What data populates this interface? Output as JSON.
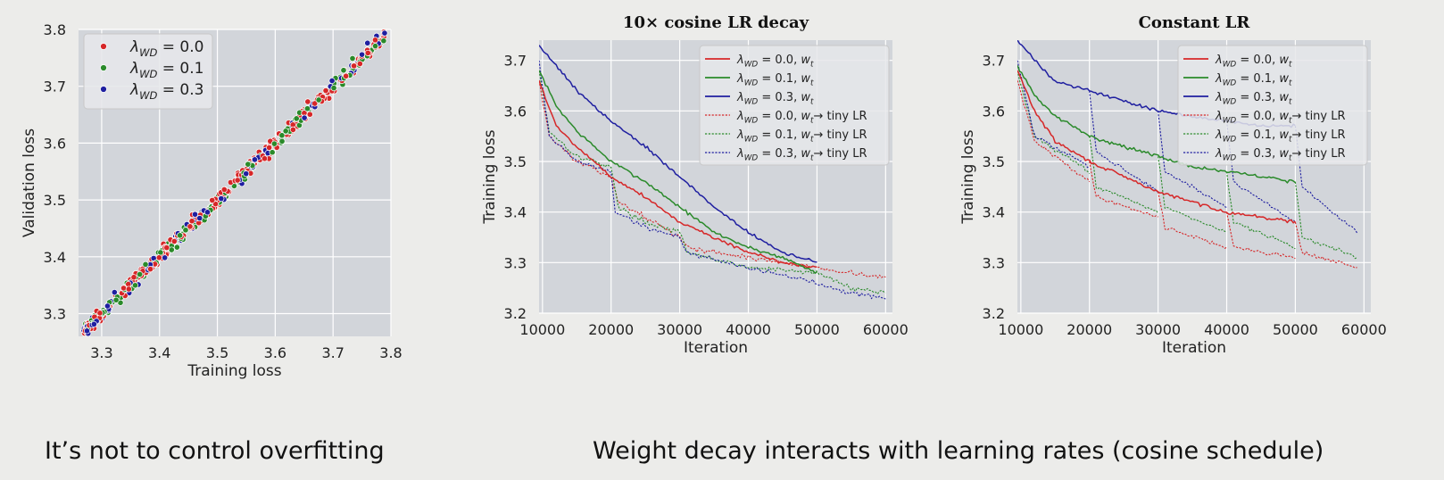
{
  "captions": {
    "left": "It’s not  to control overfitting",
    "right": "Weight decay interacts with learning rates (cosine schedule)"
  },
  "colors": {
    "red": "#d62728",
    "green": "#2a8a2a",
    "blue": "#1f1fa0",
    "plot_bg": "#d2d5da",
    "grid": "#ffffff"
  },
  "chart_data": [
    {
      "id": "scatter",
      "type": "scatter",
      "title": "",
      "xlabel": "Training loss",
      "ylabel": "Validation loss",
      "xlim": [
        3.26,
        3.8
      ],
      "ylim": [
        3.26,
        3.8
      ],
      "xticks": [
        3.3,
        3.4,
        3.5,
        3.6,
        3.7,
        3.8
      ],
      "yticks": [
        3.3,
        3.4,
        3.5,
        3.6,
        3.7,
        3.8
      ],
      "tick_labels_x": [
        "3.3",
        "3.4",
        "3.5",
        "3.6",
        "3.7",
        "3.8"
      ],
      "tick_labels_y": [
        "3.3",
        "3.4",
        "3.5",
        "3.6",
        "3.7",
        "3.8"
      ],
      "legend_position": "top-left",
      "series": [
        {
          "name": "λWD = 0.0",
          "sym": "λ",
          "sub": "WD",
          "rest": " = 0.0",
          "color": "#d62728",
          "count": 240,
          "seed": 11
        },
        {
          "name": "λWD = 0.1",
          "sym": "λ",
          "sub": "WD",
          "rest": " = 0.1",
          "color": "#2a8a2a",
          "count": 160,
          "seed": 23
        },
        {
          "name": "λWD = 0.3",
          "sym": "λ",
          "sub": "WD",
          "rest": " = 0.3",
          "color": "#1f1fa0",
          "count": 100,
          "seed": 37
        }
      ],
      "relation": {
        "slope": 1.0,
        "intercept": 0.0,
        "spread": 0.012
      }
    },
    {
      "id": "cosine",
      "type": "line",
      "title": "10× cosine LR decay",
      "xlabel": "Iteration",
      "ylabel": "Training loss",
      "xlim": [
        9500,
        61000
      ],
      "ylim": [
        3.2,
        3.74
      ],
      "xticks": [
        10000,
        20000,
        30000,
        40000,
        50000,
        60000
      ],
      "yticks": [
        3.2,
        3.3,
        3.4,
        3.5,
        3.6,
        3.7
      ],
      "tick_labels_x": [
        "10000",
        "20000",
        "30000",
        "40000",
        "50000",
        "60000"
      ],
      "tick_labels_y": [
        "3.2",
        "3.3",
        "3.4",
        "3.5",
        "3.6",
        "3.7"
      ],
      "legend_position": "top-right",
      "series": [
        {
          "name": "λWD = 0.0, wt",
          "sym": "λ",
          "sub": "WD",
          "rest": " = 0.0, ",
          "w": "w",
          "wsub": "t",
          "tail": "",
          "color": "#d62728",
          "style": "solid",
          "seed": 5,
          "points": [
            [
              9500,
              3.66
            ],
            [
              12000,
              3.57
            ],
            [
              15000,
              3.53
            ],
            [
              20000,
              3.47
            ],
            [
              25000,
              3.43
            ],
            [
              30000,
              3.38
            ],
            [
              35000,
              3.35
            ],
            [
              40000,
              3.32
            ],
            [
              45000,
              3.3
            ],
            [
              50000,
              3.29
            ]
          ]
        },
        {
          "name": "λWD = 0.1, wt",
          "sym": "λ",
          "sub": "WD",
          "rest": " = 0.1, ",
          "w": "w",
          "wsub": "t",
          "tail": "",
          "color": "#2a8a2a",
          "style": "solid",
          "seed": 7,
          "points": [
            [
              9500,
              3.68
            ],
            [
              12000,
              3.61
            ],
            [
              15000,
              3.56
            ],
            [
              20000,
              3.5
            ],
            [
              25000,
              3.46
            ],
            [
              30000,
              3.41
            ],
            [
              35000,
              3.36
            ],
            [
              40000,
              3.33
            ],
            [
              45000,
              3.31
            ],
            [
              50000,
              3.28
            ]
          ]
        },
        {
          "name": "λWD = 0.3, wt",
          "sym": "λ",
          "sub": "WD",
          "rest": " = 0.3, ",
          "w": "w",
          "wsub": "t",
          "tail": "",
          "color": "#1f1fa0",
          "style": "solid",
          "seed": 9,
          "points": [
            [
              9500,
              3.73
            ],
            [
              12000,
              3.69
            ],
            [
              15000,
              3.64
            ],
            [
              20000,
              3.58
            ],
            [
              25000,
              3.53
            ],
            [
              30000,
              3.47
            ],
            [
              35000,
              3.41
            ],
            [
              40000,
              3.36
            ],
            [
              45000,
              3.32
            ],
            [
              50000,
              3.3
            ]
          ]
        },
        {
          "name": "λWD = 0.0, wt → tiny LR",
          "sym": "λ",
          "sub": "WD",
          "rest": " = 0.0, ",
          "w": "w",
          "wsub": "t",
          "tail": "→ tiny LR",
          "color": "#d62728",
          "style": "dotted",
          "seed": 13,
          "points": [
            [
              9500,
              3.66
            ],
            [
              11000,
              3.55
            ],
            [
              15000,
              3.5
            ],
            [
              20000,
              3.47
            ],
            [
              21000,
              3.42
            ],
            [
              25000,
              3.39
            ],
            [
              30000,
              3.35
            ],
            [
              31000,
              3.33
            ],
            [
              40000,
              3.31
            ],
            [
              50000,
              3.29
            ],
            [
              55000,
              3.28
            ],
            [
              60000,
              3.27
            ]
          ]
        },
        {
          "name": "λWD = 0.1, wt → tiny LR",
          "sym": "λ",
          "sub": "WD",
          "rest": " = 0.1, ",
          "w": "w",
          "wsub": "t",
          "tail": "→ tiny LR",
          "color": "#2a8a2a",
          "style": "dotted",
          "seed": 17,
          "points": [
            [
              9500,
              3.68
            ],
            [
              11000,
              3.56
            ],
            [
              15000,
              3.51
            ],
            [
              20000,
              3.49
            ],
            [
              21000,
              3.41
            ],
            [
              25000,
              3.38
            ],
            [
              30000,
              3.36
            ],
            [
              31000,
              3.32
            ],
            [
              40000,
              3.29
            ],
            [
              50000,
              3.28
            ],
            [
              55000,
              3.25
            ],
            [
              60000,
              3.24
            ]
          ]
        },
        {
          "name": "λWD = 0.3, wt → tiny LR",
          "sym": "λ",
          "sub": "WD",
          "rest": " = 0.3, ",
          "w": "w",
          "wsub": "t",
          "tail": "→ tiny LR",
          "color": "#1f1fa0",
          "style": "dotted",
          "seed": 19,
          "points": [
            [
              9500,
              3.7
            ],
            [
              11000,
              3.55
            ],
            [
              15000,
              3.5
            ],
            [
              20000,
              3.48
            ],
            [
              20600,
              3.4
            ],
            [
              25000,
              3.37
            ],
            [
              30000,
              3.35
            ],
            [
              31000,
              3.32
            ],
            [
              40000,
              3.29
            ],
            [
              50000,
              3.26
            ],
            [
              55000,
              3.24
            ],
            [
              60000,
              3.23
            ]
          ]
        }
      ]
    },
    {
      "id": "constant",
      "type": "line",
      "title": "Constant LR",
      "xlabel": "Iteration",
      "ylabel": "Training loss",
      "xlim": [
        9500,
        61000
      ],
      "ylim": [
        3.2,
        3.74
      ],
      "xticks": [
        10000,
        20000,
        30000,
        40000,
        50000,
        60000
      ],
      "yticks": [
        3.2,
        3.3,
        3.4,
        3.5,
        3.6,
        3.7
      ],
      "tick_labels_x": [
        "10000",
        "20000",
        "30000",
        "40000",
        "50000",
        "60000"
      ],
      "tick_labels_y": [
        "3.2",
        "3.3",
        "3.4",
        "3.5",
        "3.6",
        "3.7"
      ],
      "legend_position": "top-right",
      "series": [
        {
          "name": "λWD = 0.0, wt",
          "sym": "λ",
          "sub": "WD",
          "rest": " = 0.0, ",
          "w": "w",
          "wsub": "t",
          "tail": "",
          "color": "#d62728",
          "style": "solid",
          "seed": 29,
          "points": [
            [
              9500,
              3.68
            ],
            [
              12000,
              3.6
            ],
            [
              15000,
              3.54
            ],
            [
              20000,
              3.5
            ],
            [
              25000,
              3.47
            ],
            [
              30000,
              3.44
            ],
            [
              35000,
              3.42
            ],
            [
              40000,
              3.4
            ],
            [
              45000,
              3.39
            ],
            [
              50000,
              3.38
            ]
          ]
        },
        {
          "name": "λWD = 0.1, wt",
          "sym": "λ",
          "sub": "WD",
          "rest": " = 0.1, ",
          "w": "w",
          "wsub": "t",
          "tail": "",
          "color": "#2a8a2a",
          "style": "solid",
          "seed": 31,
          "points": [
            [
              9500,
              3.69
            ],
            [
              12000,
              3.63
            ],
            [
              15000,
              3.59
            ],
            [
              20000,
              3.55
            ],
            [
              25000,
              3.53
            ],
            [
              30000,
              3.51
            ],
            [
              35000,
              3.49
            ],
            [
              40000,
              3.48
            ],
            [
              45000,
              3.47
            ],
            [
              50000,
              3.46
            ]
          ]
        },
        {
          "name": "λWD = 0.3, wt",
          "sym": "λ",
          "sub": "WD",
          "rest": " = 0.3, ",
          "w": "w",
          "wsub": "t",
          "tail": "",
          "color": "#1f1fa0",
          "style": "solid",
          "seed": 33,
          "points": [
            [
              9500,
              3.74
            ],
            [
              12000,
              3.7
            ],
            [
              15000,
              3.66
            ],
            [
              20000,
              3.64
            ],
            [
              25000,
              3.62
            ],
            [
              30000,
              3.6
            ],
            [
              35000,
              3.59
            ],
            [
              40000,
              3.58
            ],
            [
              45000,
              3.57
            ],
            [
              50000,
              3.57
            ]
          ]
        },
        {
          "name": "λWD = 0.0, wt → tiny LR",
          "sym": "λ",
          "sub": "WD",
          "rest": " = 0.0, ",
          "w": "w",
          "wsub": "t",
          "tail": "→ tiny LR",
          "color": "#d62728",
          "style": "dotted",
          "seed": 41,
          "segments": [
            [
              [
                9500,
                3.66
              ],
              [
                12000,
                3.54
              ],
              [
                20000,
                3.46
              ]
            ],
            [
              [
                20000,
                3.5
              ],
              [
                21000,
                3.43
              ],
              [
                30000,
                3.39
              ]
            ],
            [
              [
                30000,
                3.44
              ],
              [
                31000,
                3.37
              ],
              [
                40000,
                3.33
              ]
            ],
            [
              [
                40000,
                3.4
              ],
              [
                41000,
                3.33
              ],
              [
                50000,
                3.31
              ]
            ],
            [
              [
                50000,
                3.38
              ],
              [
                51000,
                3.32
              ],
              [
                59000,
                3.29
              ]
            ]
          ]
        },
        {
          "name": "λWD = 0.1, wt → tiny LR",
          "sym": "λ",
          "sub": "WD",
          "rest": " = 0.1, ",
          "w": "w",
          "wsub": "t",
          "tail": "→ tiny LR",
          "color": "#2a8a2a",
          "style": "dotted",
          "seed": 43,
          "segments": [
            [
              [
                9500,
                3.68
              ],
              [
                12000,
                3.55
              ],
              [
                20000,
                3.48
              ]
            ],
            [
              [
                20000,
                3.55
              ],
              [
                21000,
                3.45
              ],
              [
                30000,
                3.4
              ]
            ],
            [
              [
                30000,
                3.51
              ],
              [
                31000,
                3.41
              ],
              [
                40000,
                3.36
              ]
            ],
            [
              [
                40000,
                3.48
              ],
              [
                41000,
                3.38
              ],
              [
                50000,
                3.33
              ]
            ],
            [
              [
                50000,
                3.46
              ],
              [
                51000,
                3.35
              ],
              [
                59000,
                3.31
              ]
            ]
          ]
        },
        {
          "name": "λWD = 0.3, wt → tiny LR",
          "sym": "λ",
          "sub": "WD",
          "rest": " = 0.3, ",
          "w": "w",
          "wsub": "t",
          "tail": "→ tiny LR",
          "color": "#1f1fa0",
          "style": "dotted",
          "seed": 47,
          "segments": [
            [
              [
                9500,
                3.7
              ],
              [
                12000,
                3.55
              ],
              [
                20000,
                3.49
              ]
            ],
            [
              [
                20000,
                3.64
              ],
              [
                21000,
                3.52
              ],
              [
                30000,
                3.44
              ]
            ],
            [
              [
                30000,
                3.6
              ],
              [
                31000,
                3.48
              ],
              [
                40000,
                3.41
              ]
            ],
            [
              [
                40000,
                3.58
              ],
              [
                41000,
                3.46
              ],
              [
                50000,
                3.38
              ]
            ],
            [
              [
                50000,
                3.57
              ],
              [
                51000,
                3.45
              ],
              [
                59000,
                3.36
              ]
            ]
          ]
        }
      ]
    }
  ]
}
